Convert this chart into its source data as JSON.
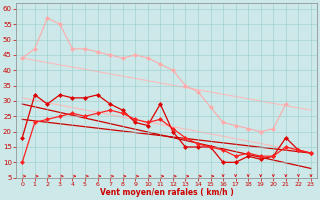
{
  "x": [
    0,
    1,
    2,
    3,
    4,
    5,
    6,
    7,
    8,
    9,
    10,
    11,
    12,
    13,
    14,
    15,
    16,
    17,
    18,
    19,
    20,
    21,
    22,
    23
  ],
  "pink_line": [
    44,
    47,
    57,
    55,
    47,
    47,
    46,
    45,
    44,
    45,
    44,
    42,
    40,
    35,
    33,
    28,
    23,
    22,
    21,
    20,
    21,
    29,
    null,
    null
  ],
  "pink_line2": [
    44,
    47,
    57,
    55,
    47,
    47,
    46,
    45,
    44,
    45,
    44,
    42,
    40,
    35,
    33,
    28,
    23,
    22,
    21,
    20,
    21,
    29,
    null,
    null
  ],
  "red_line1": [
    18,
    32,
    29,
    32,
    31,
    31,
    32,
    29,
    27,
    23,
    22,
    29,
    20,
    15,
    15,
    15,
    10,
    10,
    12,
    11,
    12,
    18,
    14,
    13
  ],
  "red_line2": [
    10,
    23,
    24,
    25,
    26,
    25,
    26,
    27,
    26,
    24,
    23,
    24,
    21,
    18,
    16,
    15,
    14,
    12,
    13,
    12,
    12,
    15,
    14,
    13
  ],
  "pink_trend1_x": [
    0,
    23
  ],
  "pink_trend1_y": [
    44,
    27
  ],
  "pink_trend2_x": [
    0,
    23
  ],
  "pink_trend2_y": [
    31,
    13
  ],
  "red_trend1_x": [
    0,
    23
  ],
  "red_trend1_y": [
    29,
    8
  ],
  "red_trend2_x": [
    0,
    23
  ],
  "red_trend2_y": [
    24,
    13
  ],
  "arrows_x": [
    0,
    1,
    2,
    3,
    4,
    5,
    6,
    7,
    8,
    9,
    10,
    11,
    12,
    13,
    14,
    15,
    16,
    17,
    18,
    19,
    20,
    21,
    22,
    23
  ],
  "bg_color": "#cce8e8",
  "grid_color": "#99cccc",
  "pink_color": "#ffaaaa",
  "red_color1": "#dd0000",
  "red_color2": "#ff2222",
  "trend_pink_color": "#ffbbbb",
  "trend_red_color": "#cc0000",
  "xlabel": "Vent moyen/en rafales ( km/h )",
  "ylim": [
    5,
    62
  ],
  "xlim": [
    -0.5,
    23.5
  ],
  "yticks": [
    5,
    10,
    15,
    20,
    25,
    30,
    35,
    40,
    45,
    50,
    55,
    60
  ],
  "xticks": [
    0,
    1,
    2,
    3,
    4,
    5,
    6,
    7,
    8,
    9,
    10,
    11,
    12,
    13,
    14,
    15,
    16,
    17,
    18,
    19,
    20,
    21,
    22,
    23
  ]
}
